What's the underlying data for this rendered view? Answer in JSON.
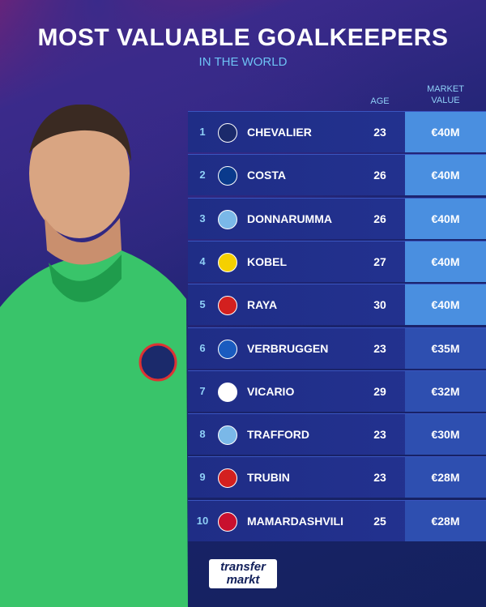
{
  "header": {
    "title": "MOST VALUABLE GOALKEEPERS",
    "subtitle": "IN THE WORLD"
  },
  "table": {
    "columns": [
      "AGE",
      "MARKET VALUE"
    ],
    "rows": [
      [
        1,
        "CHEVALIER",
        23,
        "€40M"
      ],
      [
        2,
        "COSTA",
        26,
        "€40M"
      ],
      [
        3,
        "DONNARUMMA",
        26,
        "€40M"
      ],
      [
        4,
        "KOBEL",
        27,
        "€40M"
      ],
      [
        5,
        "RAYA",
        30,
        "€40M"
      ],
      [
        6,
        "VERBRUGGEN",
        23,
        "€35M"
      ],
      [
        7,
        "VICARIO",
        29,
        "€32M"
      ],
      [
        8,
        "TRAFFORD",
        23,
        "€30M"
      ],
      [
        9,
        "TRUBIN",
        23,
        "€28M"
      ],
      [
        10,
        "MAMARDASHVILI",
        25,
        "€28M"
      ]
    ]
  },
  "footer": {
    "logo_top": "transfer",
    "logo_bottom": "markt"
  }
}
